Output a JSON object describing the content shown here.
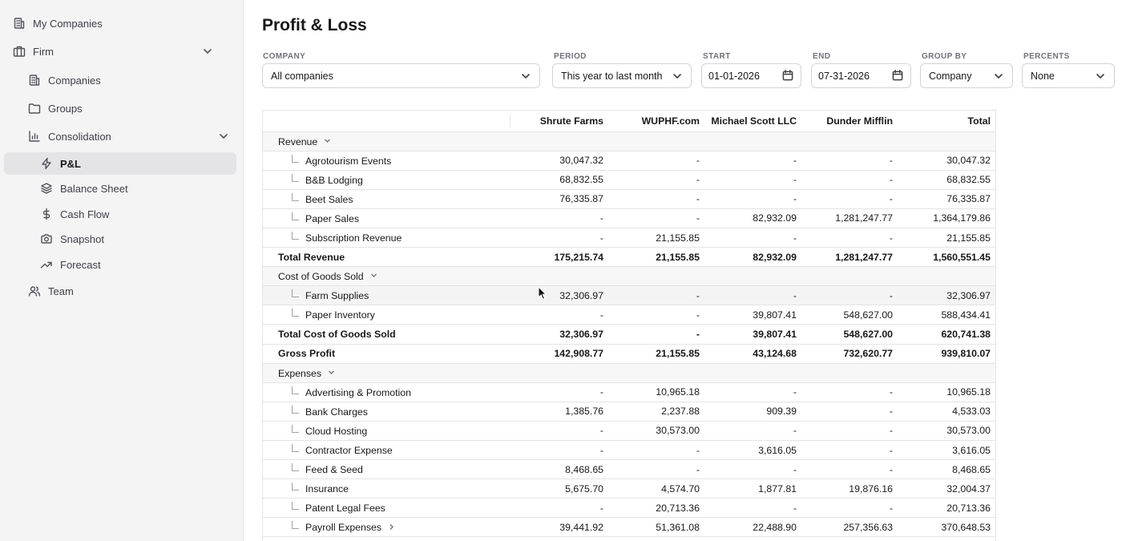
{
  "sidebar": {
    "items": [
      {
        "label": "My Companies",
        "icon": "building-icon"
      },
      {
        "label": "Firm",
        "icon": "briefcase-icon"
      },
      {
        "label": "Companies",
        "icon": "building-icon"
      },
      {
        "label": "Groups",
        "icon": "folder-icon"
      },
      {
        "label": "Consolidation",
        "icon": "bar-chart-icon"
      },
      {
        "label": "P&L",
        "icon": "lightning-icon"
      },
      {
        "label": "Balance Sheet",
        "icon": "layers-icon"
      },
      {
        "label": "Cash Flow",
        "icon": "dollar-icon"
      },
      {
        "label": "Snapshot",
        "icon": "camera-icon"
      },
      {
        "label": "Forecast",
        "icon": "trend-up-icon"
      },
      {
        "label": "Team",
        "icon": "users-icon"
      }
    ]
  },
  "page": {
    "title": "Profit & Loss"
  },
  "filters": {
    "company": {
      "label": "COMPANY",
      "value": "All companies"
    },
    "period": {
      "label": "PERIOD",
      "value": "This year to last month"
    },
    "start": {
      "label": "START",
      "value": "01-01-2026"
    },
    "end": {
      "label": "END",
      "value": "07-31-2026"
    },
    "group_by": {
      "label": "GROUP BY",
      "value": "Company"
    },
    "percents": {
      "label": "PERCENTS",
      "value": "None"
    }
  },
  "table": {
    "columns": [
      "",
      "Shrute Farms",
      "WUPHF.com",
      "Michael Scott LLC",
      "Dunder Mifflin",
      "Total"
    ],
    "rows": [
      {
        "type": "section",
        "label": "Revenue",
        "values": [
          "",
          "",
          "",
          "",
          ""
        ]
      },
      {
        "type": "child",
        "label": "Agrotourism Events",
        "values": [
          "30,047.32",
          "-",
          "-",
          "-",
          "30,047.32"
        ]
      },
      {
        "type": "child",
        "label": "B&B Lodging",
        "values": [
          "68,832.55",
          "-",
          "-",
          "-",
          "68,832.55"
        ]
      },
      {
        "type": "child",
        "label": "Beet Sales",
        "values": [
          "76,335.87",
          "-",
          "-",
          "-",
          "76,335.87"
        ]
      },
      {
        "type": "child",
        "label": "Paper Sales",
        "values": [
          "-",
          "-",
          "82,932.09",
          "1,281,247.77",
          "1,364,179.86"
        ]
      },
      {
        "type": "child",
        "label": "Subscription Revenue",
        "values": [
          "-",
          "21,155.85",
          "-",
          "-",
          "21,155.85"
        ]
      },
      {
        "type": "total",
        "label": "Total Revenue",
        "values": [
          "175,215.74",
          "21,155.85",
          "82,932.09",
          "1,281,247.77",
          "1,560,551.45"
        ]
      },
      {
        "type": "section",
        "label": "Cost of Goods Sold",
        "values": [
          "",
          "",
          "",
          "",
          ""
        ]
      },
      {
        "type": "child",
        "label": "Farm Supplies",
        "values": [
          "32,306.97",
          "-",
          "-",
          "-",
          "32,306.97"
        ],
        "hover": true
      },
      {
        "type": "child",
        "label": "Paper Inventory",
        "values": [
          "-",
          "-",
          "39,807.41",
          "548,627.00",
          "588,434.41"
        ]
      },
      {
        "type": "total",
        "label": "Total Cost of Goods Sold",
        "values": [
          "32,306.97",
          "-",
          "39,807.41",
          "548,627.00",
          "620,741.38"
        ]
      },
      {
        "type": "total",
        "label": "Gross Profit",
        "values": [
          "142,908.77",
          "21,155.85",
          "43,124.68",
          "732,620.77",
          "939,810.07"
        ]
      },
      {
        "type": "section",
        "label": "Expenses",
        "values": [
          "",
          "",
          "",
          "",
          ""
        ]
      },
      {
        "type": "child",
        "label": "Advertising & Promotion",
        "values": [
          "-",
          "10,965.18",
          "-",
          "-",
          "10,965.18"
        ]
      },
      {
        "type": "child",
        "label": "Bank Charges",
        "values": [
          "1,385.76",
          "2,237.88",
          "909.39",
          "-",
          "4,533.03"
        ]
      },
      {
        "type": "child",
        "label": "Cloud Hosting",
        "values": [
          "-",
          "30,573.00",
          "-",
          "-",
          "30,573.00"
        ]
      },
      {
        "type": "child",
        "label": "Contractor Expense",
        "values": [
          "-",
          "-",
          "3,616.05",
          "-",
          "3,616.05"
        ]
      },
      {
        "type": "child",
        "label": "Feed & Seed",
        "values": [
          "8,468.65",
          "-",
          "-",
          "-",
          "8,468.65"
        ]
      },
      {
        "type": "child",
        "label": "Insurance",
        "values": [
          "5,675.70",
          "4,574.70",
          "1,877.81",
          "19,876.16",
          "32,004.37"
        ]
      },
      {
        "type": "child",
        "label": "Patent Legal Fees",
        "values": [
          "-",
          "20,713.36",
          "-",
          "-",
          "20,713.36"
        ]
      },
      {
        "type": "child",
        "label": "Payroll Expenses",
        "values": [
          "39,441.92",
          "51,361.08",
          "22,488.90",
          "257,356.63",
          "370,648.53"
        ],
        "expandable": true
      }
    ]
  }
}
